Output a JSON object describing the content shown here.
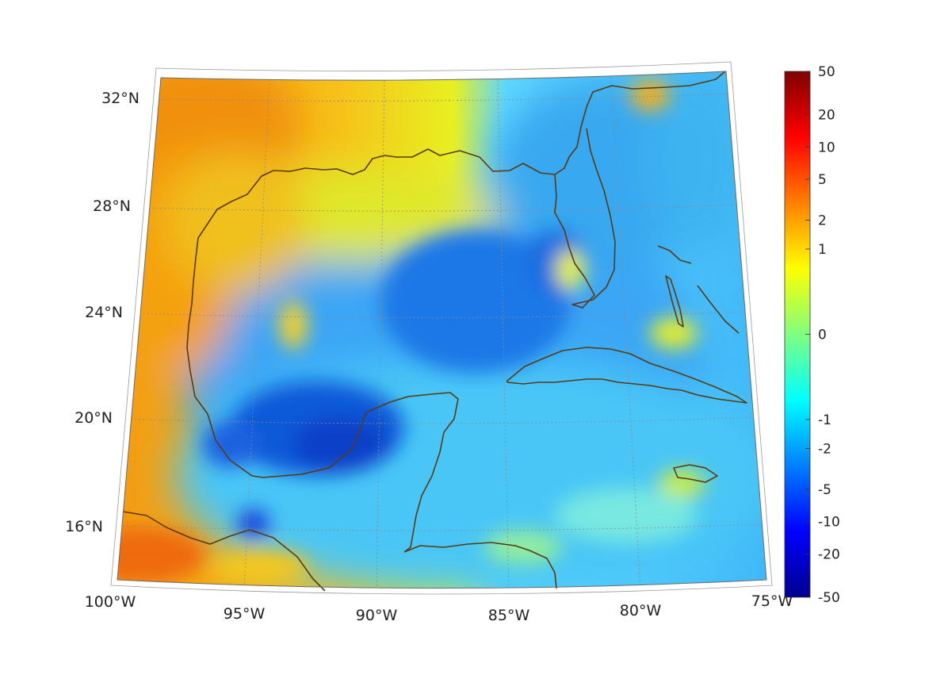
{
  "map": {
    "lat_labels": [
      "32°N",
      "28°N",
      "24°N",
      "20°N",
      "16°N"
    ],
    "lon_labels": [
      "100°W",
      "95°W",
      "90°W",
      "85°W",
      "80°W",
      "75°W"
    ],
    "lat_values": [
      32,
      28,
      24,
      20,
      16
    ],
    "lon_values": [
      -100,
      -95,
      -90,
      -85,
      -80,
      -75
    ],
    "extent": {
      "lon_min": -100,
      "lon_max": -75,
      "lat_min": 14,
      "lat_max": 32.8
    },
    "projection": "conic",
    "coastline_color": "#5a3a10"
  },
  "colorbar": {
    "tick_labels": [
      "50",
      "20",
      "10",
      "5",
      "2",
      "1",
      "0",
      "-1",
      "-2",
      "-5",
      "-10",
      "-20",
      "-50"
    ],
    "scale": "symmetric-log",
    "colormap": "jet",
    "range": [
      -50,
      50
    ]
  }
}
